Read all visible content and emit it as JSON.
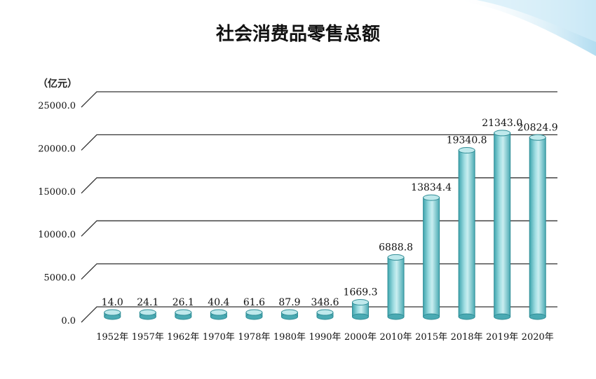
{
  "chart_data": {
    "type": "bar",
    "title": "社会消费品零售总额",
    "ylabel": "（亿元）",
    "xlabel": "",
    "categories": [
      "1952年",
      "1957年",
      "1962年",
      "1970年",
      "1978年",
      "1980年",
      "1990年",
      "2000年",
      "2010年",
      "2015年",
      "2018年",
      "2019年",
      "2020年"
    ],
    "values": [
      14.0,
      24.1,
      26.1,
      40.4,
      61.6,
      87.9,
      348.6,
      1669.3,
      6888.8,
      13834.4,
      19340.8,
      21343.0,
      20824.9
    ],
    "value_labels": [
      "14.0",
      "24.1",
      "26.1",
      "40.4",
      "61.6",
      "87.9",
      "348.6",
      "1669.3",
      "6888.8",
      "13834.4",
      "19340.8",
      "21343.0",
      "20824.9"
    ],
    "yticks": [
      0,
      5000,
      10000,
      15000,
      20000,
      25000
    ],
    "ytick_labels": [
      "0.0",
      "5000.0",
      "10000.0",
      "15000.0",
      "20000.0",
      "25000.0"
    ],
    "ylim": [
      0,
      25000
    ],
    "grid": true,
    "legend": "none",
    "bar_color": "#6cc3cb",
    "bar_edge_color": "#2f8d96"
  }
}
